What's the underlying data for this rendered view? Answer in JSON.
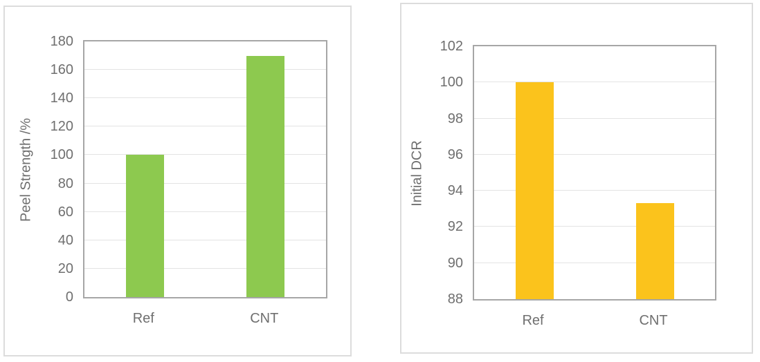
{
  "figure": {
    "description": "Two single-series bar charts comparing Ref and CNT samples",
    "text_color": "#6f6f6f",
    "plot_border_color": "#a6a6a6",
    "gridline_color": "#e3e3e3",
    "card_border_color": "#dcdcdc"
  },
  "chart_data": [
    {
      "type": "bar",
      "title": "",
      "categories": [
        "Ref",
        "CNT"
      ],
      "values": [
        100,
        170
      ],
      "xlabel": "",
      "ylabel": "Peel Strength /%",
      "ylim": [
        0,
        180
      ],
      "ytick_step": 20,
      "yticks": [
        0,
        20,
        40,
        60,
        80,
        100,
        120,
        140,
        160,
        180
      ],
      "bar_color": "#8dc94f",
      "grid": true,
      "legend": false
    },
    {
      "type": "bar",
      "title": "",
      "categories": [
        "Ref",
        "CNT"
      ],
      "values": [
        100,
        93.3
      ],
      "xlabel": "",
      "ylabel": "Initial DCR",
      "ylim": [
        88,
        102
      ],
      "ytick_step": 2,
      "yticks": [
        88,
        90,
        92,
        94,
        96,
        98,
        100,
        102
      ],
      "bar_color": "#fbc31c",
      "grid": true,
      "legend": false
    }
  ]
}
